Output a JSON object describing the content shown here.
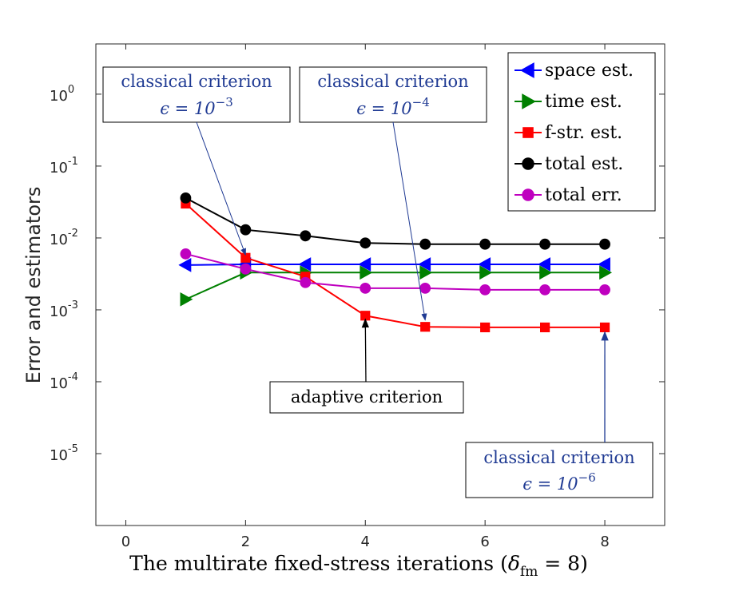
{
  "chart_data": {
    "type": "line",
    "xlabel_main": "The multirate fixed-stress iterations (",
    "xlabel_symbol": "δ",
    "xlabel_sub": "fm",
    "xlabel_tail": " = 8)",
    "ylabel": "Error and estimators",
    "y_scale": "log",
    "xlim": [
      -0.5,
      9
    ],
    "ylim": [
      1e-06,
      5
    ],
    "xticks": [
      {
        "value": 0,
        "label": "0"
      },
      {
        "value": 2,
        "label": "2"
      },
      {
        "value": 4,
        "label": "4"
      },
      {
        "value": 6,
        "label": "6"
      },
      {
        "value": 8,
        "label": "8"
      }
    ],
    "yticks": [
      {
        "value": 1,
        "base": "10",
        "exp": "0"
      },
      {
        "value": 0.1,
        "base": "10",
        "exp": "-1"
      },
      {
        "value": 0.01,
        "base": "10",
        "exp": "-2"
      },
      {
        "value": 0.001,
        "base": "10",
        "exp": "-3"
      },
      {
        "value": 0.0001,
        "base": "10",
        "exp": "-4"
      },
      {
        "value": 1e-05,
        "base": "10",
        "exp": "-5"
      }
    ],
    "x": [
      1,
      2,
      3,
      4,
      5,
      6,
      7,
      8
    ],
    "series": [
      {
        "name": "space est.",
        "color": "#0000ff",
        "marker": "triangle-left",
        "values": [
          0.0042,
          0.0043,
          0.0043,
          0.0043,
          0.0043,
          0.0043,
          0.0043,
          0.0043
        ]
      },
      {
        "name": "time est.",
        "color": "#008000",
        "marker": "triangle-right",
        "values": [
          0.0014,
          0.0033,
          0.0033,
          0.0033,
          0.0033,
          0.0033,
          0.0033,
          0.0033
        ]
      },
      {
        "name": "f-str. est.",
        "color": "#ff0000",
        "marker": "square",
        "values": [
          0.03,
          0.0053,
          0.0029,
          0.00083,
          0.00058,
          0.00057,
          0.00057,
          0.00057
        ]
      },
      {
        "name": "total est.",
        "color": "#000000",
        "marker": "circle",
        "values": [
          0.036,
          0.013,
          0.0107,
          0.0085,
          0.0082,
          0.0082,
          0.0082,
          0.0082
        ]
      },
      {
        "name": "total err.",
        "color": "#bf00bf",
        "marker": "circle",
        "values": [
          0.006,
          0.0037,
          0.0024,
          0.002,
          0.002,
          0.0019,
          0.0019,
          0.0019
        ]
      }
    ],
    "legend_position": "top-right",
    "grid": false,
    "annotations": [
      {
        "line1": "classical criterion",
        "line2_main": "ϵ = 10",
        "line2_exp": "−3",
        "color": "blue",
        "target_x": 2,
        "target_y": 0.0058
      },
      {
        "line1": "classical criterion",
        "line2_main": "ϵ = 10",
        "line2_exp": "−4",
        "color": "blue",
        "target_x": 5,
        "target_y": 0.00072
      },
      {
        "line1": "adaptive criterion",
        "color": "black",
        "target_x": 4,
        "target_y": 0.00074
      },
      {
        "line1": "classical criterion",
        "line2_main": "ϵ = 10",
        "line2_exp": "−6",
        "color": "blue",
        "target_x": 8,
        "target_y": 0.00049
      }
    ]
  }
}
